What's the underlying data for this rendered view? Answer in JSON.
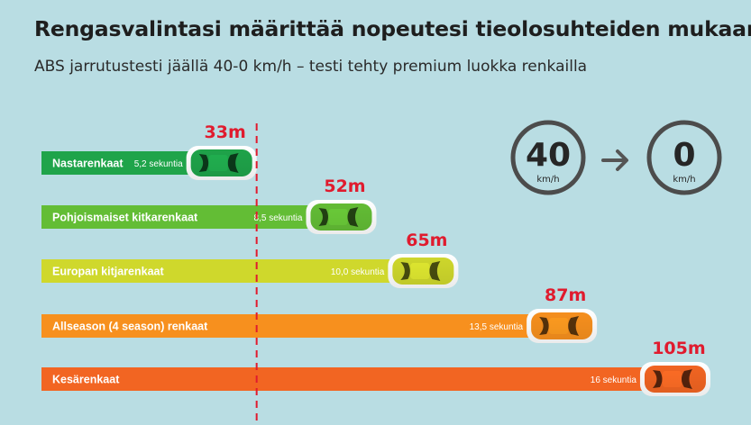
{
  "title": "Rengasvalintasi määrittää nopeutesi tieolosuhteiden mukaan",
  "subtitle": "ABS jarrutustesti jäällä 40-0 km/h – testi tehty premium luokka renkailla",
  "speed_panel": {
    "from_value": "40",
    "from_unit": "km/h",
    "arrow_icon": "arrow-right-icon",
    "to_value": "0",
    "to_unit": "km/h"
  },
  "colors": {
    "background": "#b9dde3",
    "distance_label": "#e01b2e",
    "reference_line": "#e01b2e"
  },
  "chart_data": {
    "type": "bar",
    "orientation": "horizontal",
    "title": "Rengasvalintasi määrittää nopeutesi tieolosuhteiden mukaan",
    "subtitle": "ABS jarrutustesti jäällä 40-0 km/h – testi tehty premium luokka renkailla",
    "categories": [
      "Nastarenkaat",
      "Pohjoismaiset kitkarenkaat",
      "Europan kitjarenkaat",
      "Allseason (4 season) renkaat",
      "Kesärenkaat"
    ],
    "values": [
      33,
      52,
      65,
      87,
      105
    ],
    "value_labels": [
      "33m",
      "52m",
      "65m",
      "87m",
      "105m"
    ],
    "time_labels": [
      "5,2 sekuntia",
      "8,5 sekuntia",
      "10,0 sekuntia",
      "13,5 sekuntia",
      "16 sekuntia"
    ],
    "bar_colors": [
      "#1fa44a",
      "#63bd35",
      "#cfd82c",
      "#f7901e",
      "#f26522"
    ],
    "reference_line_value": 33,
    "reference_line_style": "dashed",
    "xlim": [
      0,
      105
    ],
    "grid": false,
    "legend": "none"
  }
}
